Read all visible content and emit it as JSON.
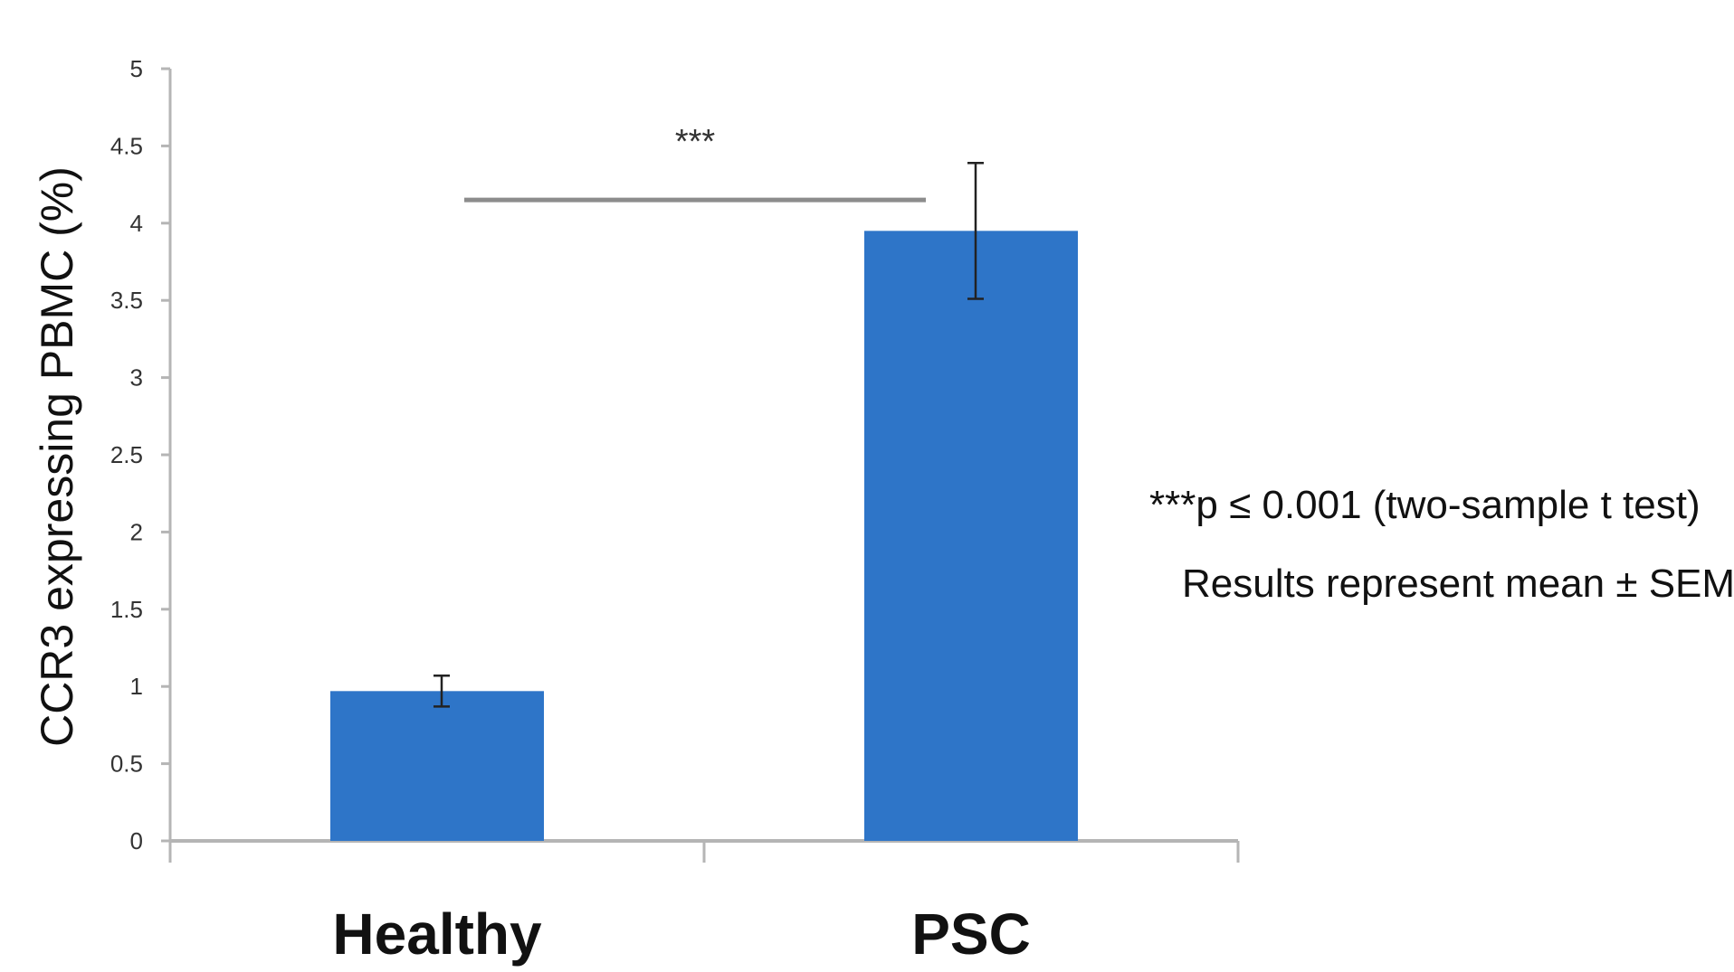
{
  "chart_data": {
    "type": "bar",
    "categories": [
      "Healthy",
      "PSC"
    ],
    "values": [
      0.97,
      3.95
    ],
    "error": [
      0.1,
      0.44
    ],
    "ylabel": "CCR3  expressing PBMC (%)",
    "xlabel": "",
    "ylim": [
      0,
      5
    ],
    "yticks": [
      "0",
      "0.5",
      "1",
      "1.5",
      "2",
      "2.5",
      "3",
      "3.5",
      "4",
      "4.5",
      "5"
    ],
    "bar_color": "#2e75c8",
    "grid": false,
    "significance": {
      "label": "***",
      "level": 4.15,
      "between": [
        "Healthy",
        "PSC"
      ]
    },
    "annotations": [
      "***p ≤ 0.001 (two-sample t test)",
      "Results represent mean ± SEM"
    ]
  }
}
